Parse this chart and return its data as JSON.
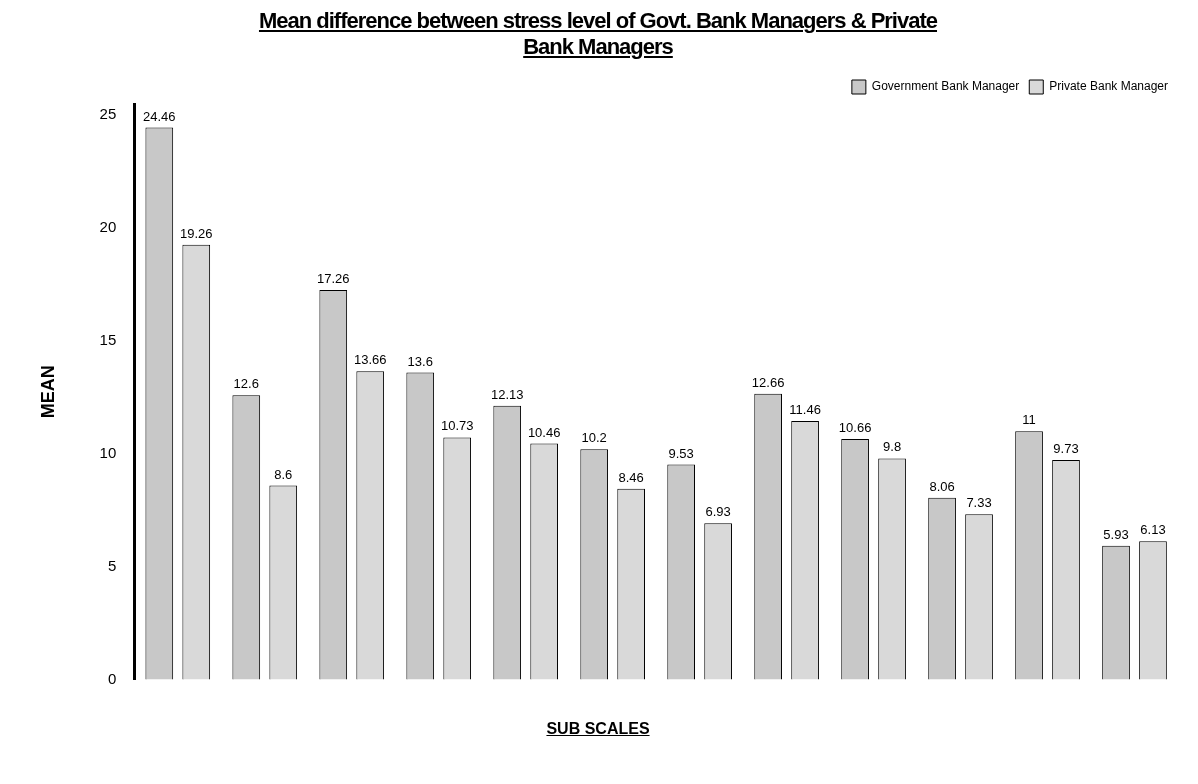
{
  "chart_data": {
    "type": "bar",
    "title": "Mean difference between stress level of Govt. Bank Managers & Private Bank Managers",
    "xlabel": "SUB SCALES",
    "ylabel": "MEAN",
    "categories": [
      null,
      null,
      null,
      null,
      null,
      null,
      null,
      null,
      null,
      null,
      null,
      null
    ],
    "series": [
      {
        "name": "Government Bank Manager",
        "color": "#c8c8c8",
        "values": [
          24.46,
          12.6,
          17.26,
          13.6,
          12.13,
          10.2,
          9.53,
          12.66,
          10.66,
          8.06,
          11,
          5.93
        ]
      },
      {
        "name": "Private Bank Manager",
        "color": "#d9d9d9",
        "values": [
          19.26,
          8.6,
          13.66,
          10.73,
          10.46,
          8.46,
          6.93,
          11.46,
          9.8,
          7.33,
          9.73,
          6.13
        ]
      }
    ],
    "ylim": [
      0,
      25.5
    ],
    "yticks": [
      0,
      5,
      10,
      15,
      20,
      25
    ],
    "grid": false,
    "legend": "top right",
    "data_labels": true
  }
}
